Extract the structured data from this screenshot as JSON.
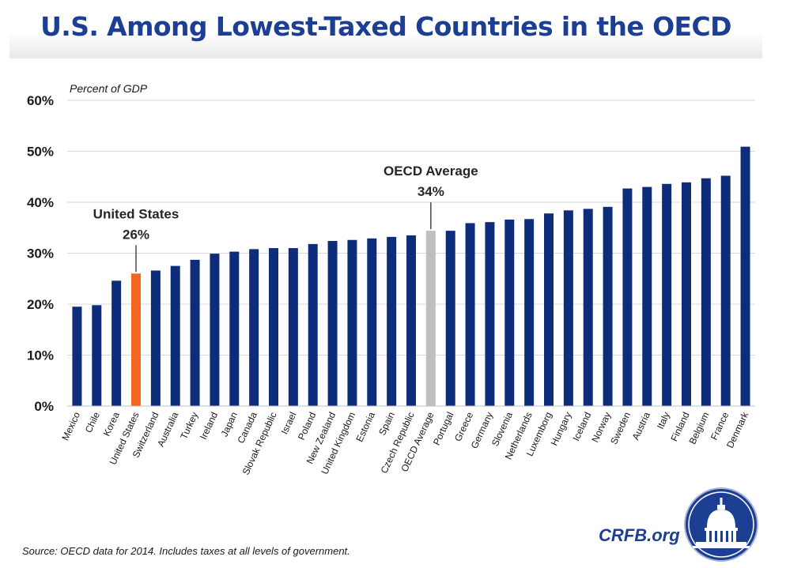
{
  "header": {
    "title": "U.S. Among Lowest-Taxed Countries in the OECD"
  },
  "chart_data": {
    "type": "bar",
    "title": "U.S. Among Lowest-Taxed Countries in the OECD",
    "ylabel": "Percent of GDP",
    "xlabel": "",
    "ylim": [
      0,
      60
    ],
    "yticks": [
      0,
      10,
      20,
      30,
      40,
      50,
      60
    ],
    "ytick_labels": [
      "0%",
      "10%",
      "20%",
      "30%",
      "40%",
      "50%",
      "60%"
    ],
    "grid": true,
    "categories": [
      "Mexico",
      "Chile",
      "Korea",
      "United States",
      "Switzerland",
      "Australia",
      "Turkey",
      "Ireland",
      "Japan",
      "Canada",
      "Slovak Republic",
      "Israel",
      "Poland",
      "New Zealand",
      "United Kingdom",
      "Estonia",
      "Spain",
      "Czech Republic",
      "OECD Average",
      "Portugal",
      "Greece",
      "Germany",
      "Slovenia",
      "Netherlands",
      "Luxemborg",
      "Hungary",
      "Iceland",
      "Norway",
      "Sweden",
      "Austria",
      "Italy",
      "Finland",
      "Belgium",
      "France",
      "Denmark"
    ],
    "values": [
      19.5,
      19.8,
      24.6,
      26.0,
      26.6,
      27.5,
      28.7,
      29.9,
      30.3,
      30.8,
      31.0,
      31.0,
      31.8,
      32.4,
      32.6,
      32.9,
      33.2,
      33.5,
      34.4,
      34.4,
      35.9,
      36.1,
      36.6,
      36.7,
      37.8,
      38.4,
      38.7,
      39.1,
      42.7,
      43.0,
      43.6,
      43.9,
      44.7,
      45.2,
      50.9
    ],
    "colors": {
      "default": "#0d2c7a",
      "highlight": "#f26522",
      "average": "#bfbfbf",
      "grid": "#d9d9d9",
      "axis": "#bfbfbf"
    },
    "highlight_index": 3,
    "average_index": 18,
    "annotations": [
      {
        "target": "United States",
        "label": "United States",
        "value": "26%"
      },
      {
        "target": "OECD Average",
        "label": "OECD Average",
        "value": "34%"
      }
    ]
  },
  "footer": {
    "source": "Source: OECD data for 2014. Includes taxes at all levels of government.",
    "brand": "CRFB.org"
  },
  "logo": {
    "icon": "capitol-dome-icon"
  }
}
